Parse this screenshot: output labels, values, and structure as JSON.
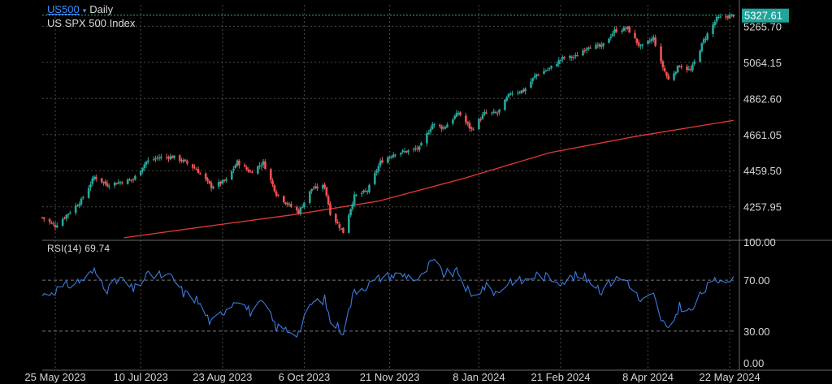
{
  "header": {
    "symbol": "US500",
    "caret": "▾",
    "timeframe": "Daily",
    "description": "US SPX 500 Index"
  },
  "rsi_panel": {
    "label": "RSI(14) 69.74"
  },
  "colors": {
    "up": "#26a69a",
    "down": "#ef5350",
    "ma": "#e53935",
    "rsi": "#3b7be0",
    "last_price_bg": "#1fa59a",
    "grid": "#4a4a4a",
    "symbol": "#3d8bff"
  },
  "chart_data": [
    {
      "type": "candlestick",
      "panel": "price",
      "title": "US SPX 500 Index",
      "price_axis_ticks": [
        "5265.70",
        "5064.15",
        "4862.60",
        "4661.05",
        "4459.50",
        "4257.95"
      ],
      "last_price": "5327.61",
      "ylim": [
        4080,
        5385
      ],
      "x_axis_ticks": [
        "25 May 2023",
        "10 Jul 2023",
        "23 Aug 2023",
        "6 Oct 2023",
        "21 Nov 2023",
        "8 Jan 2024",
        "21 Feb 2024",
        "8 Apr 2024",
        "22 May 2024"
      ],
      "x_date_range": [
        "2023-05-18",
        "2024-05-25"
      ],
      "close_path": [
        [
          "2023-05-18",
          4198
        ],
        [
          "2023-05-25",
          4151
        ],
        [
          "2023-06-01",
          4221
        ],
        [
          "2023-06-08",
          4293
        ],
        [
          "2023-06-15",
          4425
        ],
        [
          "2023-06-22",
          4381
        ],
        [
          "2023-06-29",
          4396
        ],
        [
          "2023-07-06",
          4411
        ],
        [
          "2023-07-13",
          4510
        ],
        [
          "2023-07-20",
          4534
        ],
        [
          "2023-07-27",
          4537
        ],
        [
          "2023-08-02",
          4513
        ],
        [
          "2023-08-09",
          4467
        ],
        [
          "2023-08-17",
          4370
        ],
        [
          "2023-08-25",
          4405
        ],
        [
          "2023-08-31",
          4508
        ],
        [
          "2023-09-07",
          4451
        ],
        [
          "2023-09-14",
          4505
        ],
        [
          "2023-09-21",
          4330
        ],
        [
          "2023-09-27",
          4274
        ],
        [
          "2023-10-03",
          4229
        ],
        [
          "2023-10-10",
          4358
        ],
        [
          "2023-10-17",
          4373
        ],
        [
          "2023-10-20",
          4224
        ],
        [
          "2023-10-27",
          4117
        ],
        [
          "2023-11-02",
          4317
        ],
        [
          "2023-11-09",
          4347
        ],
        [
          "2023-11-16",
          4508
        ],
        [
          "2023-11-24",
          4559
        ],
        [
          "2023-11-30",
          4567
        ],
        [
          "2023-12-07",
          4585
        ],
        [
          "2023-12-14",
          4719
        ],
        [
          "2023-12-20",
          4698
        ],
        [
          "2023-12-28",
          4783
        ],
        [
          "2024-01-04",
          4688
        ],
        [
          "2024-01-11",
          4780
        ],
        [
          "2024-01-18",
          4780
        ],
        [
          "2024-01-25",
          4894
        ],
        [
          "2024-02-01",
          4906
        ],
        [
          "2024-02-08",
          4997
        ],
        [
          "2024-02-15",
          5029
        ],
        [
          "2024-02-22",
          5087
        ],
        [
          "2024-02-29",
          5096
        ],
        [
          "2024-03-07",
          5157
        ],
        [
          "2024-03-14",
          5150
        ],
        [
          "2024-03-21",
          5241
        ],
        [
          "2024-03-28",
          5254
        ],
        [
          "2024-04-04",
          5147
        ],
        [
          "2024-04-11",
          5199
        ],
        [
          "2024-04-15",
          5061
        ],
        [
          "2024-04-19",
          4967
        ],
        [
          "2024-04-25",
          5048
        ],
        [
          "2024-05-01",
          5018
        ],
        [
          "2024-05-08",
          5187
        ],
        [
          "2024-05-15",
          5308
        ],
        [
          "2024-05-21",
          5321
        ],
        [
          "2024-05-24",
          5327.61
        ]
      ],
      "moving_average": [
        [
          "2023-07-01",
          4085
        ],
        [
          "2023-08-15",
          4150
        ],
        [
          "2023-10-01",
          4215
        ],
        [
          "2023-11-15",
          4290
        ],
        [
          "2024-01-01",
          4420
        ],
        [
          "2024-02-15",
          4560
        ],
        [
          "2024-04-01",
          4650
        ],
        [
          "2024-05-24",
          4740
        ]
      ]
    },
    {
      "type": "line",
      "panel": "rsi",
      "title": "RSI(14) 69.74",
      "series": [
        {
          "name": "RSI(14)",
          "last_value": 69.74
        }
      ],
      "y_axis_ticks": [
        "100.00",
        "70.00",
        "30.00",
        "0.00"
      ],
      "ylim": [
        0,
        100
      ],
      "reference_lines": [
        70,
        30
      ],
      "path": [
        [
          "2023-05-18",
          58
        ],
        [
          "2023-05-25",
          62
        ],
        [
          "2023-06-01",
          66
        ],
        [
          "2023-06-08",
          70
        ],
        [
          "2023-06-15",
          77
        ],
        [
          "2023-06-22",
          63
        ],
        [
          "2023-06-29",
          71
        ],
        [
          "2023-07-06",
          62
        ],
        [
          "2023-07-13",
          73
        ],
        [
          "2023-07-20",
          74
        ],
        [
          "2023-07-27",
          72
        ],
        [
          "2023-08-02",
          60
        ],
        [
          "2023-08-09",
          55
        ],
        [
          "2023-08-17",
          36
        ],
        [
          "2023-08-25",
          48
        ],
        [
          "2023-08-31",
          56
        ],
        [
          "2023-09-07",
          45
        ],
        [
          "2023-09-14",
          52
        ],
        [
          "2023-09-21",
          33
        ],
        [
          "2023-09-27",
          31
        ],
        [
          "2023-10-03",
          29
        ],
        [
          "2023-10-10",
          52
        ],
        [
          "2023-10-17",
          55
        ],
        [
          "2023-10-20",
          38
        ],
        [
          "2023-10-27",
          30
        ],
        [
          "2023-11-02",
          62
        ],
        [
          "2023-11-09",
          66
        ],
        [
          "2023-11-16",
          72
        ],
        [
          "2023-11-24",
          74
        ],
        [
          "2023-11-30",
          74
        ],
        [
          "2023-12-07",
          70
        ],
        [
          "2023-12-14",
          85
        ],
        [
          "2023-12-20",
          75
        ],
        [
          "2023-12-28",
          76
        ],
        [
          "2024-01-04",
          56
        ],
        [
          "2024-01-11",
          65
        ],
        [
          "2024-01-18",
          60
        ],
        [
          "2024-01-25",
          70
        ],
        [
          "2024-02-01",
          69
        ],
        [
          "2024-02-08",
          74
        ],
        [
          "2024-02-15",
          72
        ],
        [
          "2024-02-22",
          69
        ],
        [
          "2024-02-29",
          73
        ],
        [
          "2024-03-07",
          71
        ],
        [
          "2024-03-14",
          62
        ],
        [
          "2024-03-21",
          71
        ],
        [
          "2024-03-28",
          70
        ],
        [
          "2024-04-04",
          53
        ],
        [
          "2024-04-11",
          58
        ],
        [
          "2024-04-15",
          40
        ],
        [
          "2024-04-19",
          29
        ],
        [
          "2024-04-25",
          50
        ],
        [
          "2024-05-01",
          45
        ],
        [
          "2024-05-08",
          62
        ],
        [
          "2024-05-15",
          70
        ],
        [
          "2024-05-21",
          72
        ],
        [
          "2024-05-24",
          69.74
        ]
      ]
    }
  ]
}
